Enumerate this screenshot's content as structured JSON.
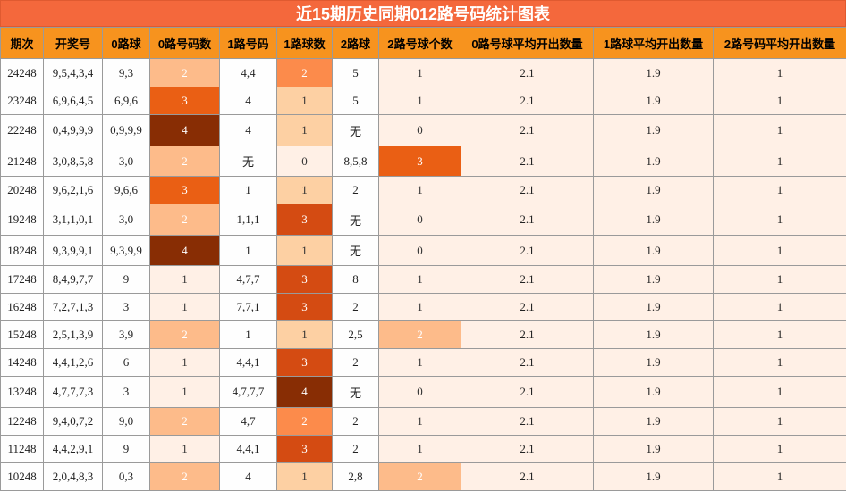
{
  "title": "近15期历史同期012路号码统计图表",
  "headers": [
    "期次",
    "开奖号",
    "0路球",
    "0路号码数",
    "1路号码",
    "1路球数",
    "2路球",
    "2路号球个数",
    "0路号球平均开出数量",
    "1路球平均开出数量",
    "2路号码平均开出数量"
  ],
  "colors": {
    "title_bg": "#f4683c",
    "header_bg": "#f7931e",
    "plain": "#fefefe",
    "levels": [
      "#fff0e6",
      "#fff0e6",
      "#fdbb8a",
      "#ea5f14",
      "#882d04"
    ],
    "levels_alt": [
      "#fff0e6",
      "#fdd0a3",
      "#fc8b4b",
      "#d44b12",
      "#882d04"
    ]
  },
  "rows": [
    {
      "period": "24248",
      "draw": "9,5,4,3,4",
      "r0_balls": "9,3",
      "r0_count": "2",
      "r1_balls": "4,4",
      "r1_count": "2",
      "r2_balls": "5",
      "r2_count": "1",
      "avg0": "2.1",
      "avg1": "1.9",
      "avg2": "1"
    },
    {
      "period": "23248",
      "draw": "6,9,6,4,5",
      "r0_balls": "6,9,6",
      "r0_count": "3",
      "r1_balls": "4",
      "r1_count": "1",
      "r2_balls": "5",
      "r2_count": "1",
      "avg0": "2.1",
      "avg1": "1.9",
      "avg2": "1"
    },
    {
      "period": "22248",
      "draw": "0,4,9,9,9",
      "r0_balls": "0,9,9,9",
      "r0_count": "4",
      "r1_balls": "4",
      "r1_count": "1",
      "r2_balls": "无",
      "r2_count": "0",
      "avg0": "2.1",
      "avg1": "1.9",
      "avg2": "1"
    },
    {
      "period": "21248",
      "draw": "3,0,8,5,8",
      "r0_balls": "3,0",
      "r0_count": "2",
      "r1_balls": "无",
      "r1_count": "0",
      "r2_balls": "8,5,8",
      "r2_count": "3",
      "avg0": "2.1",
      "avg1": "1.9",
      "avg2": "1"
    },
    {
      "period": "20248",
      "draw": "9,6,2,1,6",
      "r0_balls": "9,6,6",
      "r0_count": "3",
      "r1_balls": "1",
      "r1_count": "1",
      "r2_balls": "2",
      "r2_count": "1",
      "avg0": "2.1",
      "avg1": "1.9",
      "avg2": "1"
    },
    {
      "period": "19248",
      "draw": "3,1,1,0,1",
      "r0_balls": "3,0",
      "r0_count": "2",
      "r1_balls": "1,1,1",
      "r1_count": "3",
      "r2_balls": "无",
      "r2_count": "0",
      "avg0": "2.1",
      "avg1": "1.9",
      "avg2": "1"
    },
    {
      "period": "18248",
      "draw": "9,3,9,9,1",
      "r0_balls": "9,3,9,9",
      "r0_count": "4",
      "r1_balls": "1",
      "r1_count": "1",
      "r2_balls": "无",
      "r2_count": "0",
      "avg0": "2.1",
      "avg1": "1.9",
      "avg2": "1"
    },
    {
      "period": "17248",
      "draw": "8,4,9,7,7",
      "r0_balls": "9",
      "r0_count": "1",
      "r1_balls": "4,7,7",
      "r1_count": "3",
      "r2_balls": "8",
      "r2_count": "1",
      "avg0": "2.1",
      "avg1": "1.9",
      "avg2": "1"
    },
    {
      "period": "16248",
      "draw": "7,2,7,1,3",
      "r0_balls": "3",
      "r0_count": "1",
      "r1_balls": "7,7,1",
      "r1_count": "3",
      "r2_balls": "2",
      "r2_count": "1",
      "avg0": "2.1",
      "avg1": "1.9",
      "avg2": "1"
    },
    {
      "period": "15248",
      "draw": "2,5,1,3,9",
      "r0_balls": "3,9",
      "r0_count": "2",
      "r1_balls": "1",
      "r1_count": "1",
      "r2_balls": "2,5",
      "r2_count": "2",
      "avg0": "2.1",
      "avg1": "1.9",
      "avg2": "1"
    },
    {
      "period": "14248",
      "draw": "4,4,1,2,6",
      "r0_balls": "6",
      "r0_count": "1",
      "r1_balls": "4,4,1",
      "r1_count": "3",
      "r2_balls": "2",
      "r2_count": "1",
      "avg0": "2.1",
      "avg1": "1.9",
      "avg2": "1"
    },
    {
      "period": "13248",
      "draw": "4,7,7,7,3",
      "r0_balls": "3",
      "r0_count": "1",
      "r1_balls": "4,7,7,7",
      "r1_count": "4",
      "r2_balls": "无",
      "r2_count": "0",
      "avg0": "2.1",
      "avg1": "1.9",
      "avg2": "1"
    },
    {
      "period": "12248",
      "draw": "9,4,0,7,2",
      "r0_balls": "9,0",
      "r0_count": "2",
      "r1_balls": "4,7",
      "r1_count": "2",
      "r2_balls": "2",
      "r2_count": "1",
      "avg0": "2.1",
      "avg1": "1.9",
      "avg2": "1"
    },
    {
      "period": "11248",
      "draw": "4,4,2,9,1",
      "r0_balls": "9",
      "r0_count": "1",
      "r1_balls": "4,4,1",
      "r1_count": "3",
      "r2_balls": "2",
      "r2_count": "1",
      "avg0": "2.1",
      "avg1": "1.9",
      "avg2": "1"
    },
    {
      "period": "10248",
      "draw": "2,0,4,8,3",
      "r0_balls": "0,3",
      "r0_count": "2",
      "r1_balls": "4",
      "r1_count": "1",
      "r2_balls": "2,8",
      "r2_count": "2",
      "avg0": "2.1",
      "avg1": "1.9",
      "avg2": "1"
    }
  ]
}
